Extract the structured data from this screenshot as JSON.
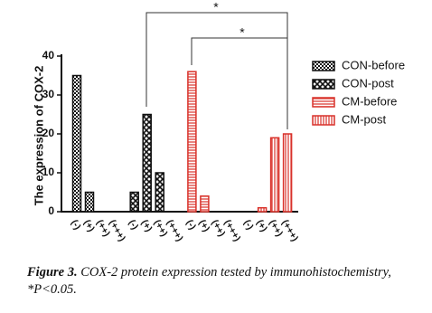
{
  "chart_data": {
    "type": "bar",
    "y_label": "The expression of COX-2",
    "categories": [
      "(-)",
      "(+)",
      "(++)",
      "(+++)"
    ],
    "series": [
      {
        "name": "CON-before",
        "color": "#111111",
        "values": [
          35,
          5,
          0,
          0
        ]
      },
      {
        "name": "CON-post",
        "color": "#111111",
        "values": [
          5,
          25,
          10,
          0
        ]
      },
      {
        "name": "CM-before",
        "color": "#d9322b",
        "values": [
          36,
          4,
          0,
          0
        ]
      },
      {
        "name": "CM-post",
        "color": "#d9322b",
        "values": [
          0,
          1,
          19,
          20
        ]
      }
    ],
    "ylim": [
      0,
      40
    ],
    "yticks": [
      0,
      10,
      20,
      30,
      40
    ],
    "annotations": [
      "*",
      "*"
    ],
    "legend": "right"
  },
  "caption": {
    "label": "Figure 3.",
    "text": "COX-2 protein expression tested by immunohistochemistry, *P<0.05."
  }
}
